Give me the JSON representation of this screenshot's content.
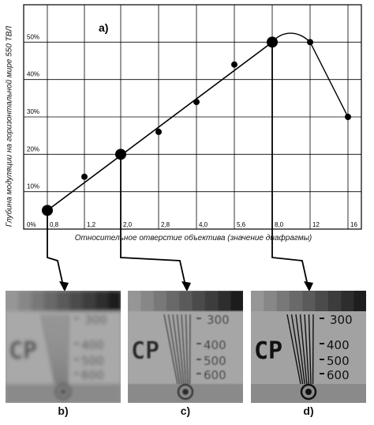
{
  "chart_data": {
    "type": "line",
    "title": "",
    "panel_label": "a)",
    "xlabel": "Относительное отверстие объектива (значение диафрагмы)",
    "ylabel": "Глубина модуляции на горизонтальной мире 550 ТВЛ",
    "x_ticks": [
      "0,8",
      "1,2",
      "2,0",
      "2,8",
      "4,0",
      "5,6",
      "8,0",
      "12",
      "16"
    ],
    "y_ticks": [
      "0%",
      "10%",
      "20%",
      "30%",
      "40%",
      "50%"
    ],
    "ylim": [
      0,
      60
    ],
    "grid": true,
    "legend": "none",
    "series": [
      {
        "x": [
          "0,8",
          "1,2",
          "2,0",
          "2,8",
          "4,0",
          "5,6",
          "8,0",
          "12",
          "16"
        ],
        "values": [
          5,
          14,
          20,
          26,
          34,
          44,
          50,
          50,
          30
        ]
      }
    ],
    "trend_line": {
      "x": [
        "0,8",
        "8,0"
      ],
      "values": [
        5,
        50
      ]
    },
    "highlighted_points": [
      "0,8",
      "2,0",
      "8,0"
    ]
  },
  "panels": [
    {
      "label": "b)",
      "from": "0,8",
      "sharpness": "low",
      "text": "CP",
      "marks": [
        "300",
        "400",
        "500",
        "600"
      ]
    },
    {
      "label": "c)",
      "from": "2,0",
      "sharpness": "medium",
      "text": "CP",
      "marks": [
        "300",
        "400",
        "500",
        "600"
      ]
    },
    {
      "label": "d)",
      "from": "8,0",
      "sharpness": "high",
      "text": "CP",
      "marks": [
        "300",
        "400",
        "500",
        "600"
      ]
    }
  ]
}
